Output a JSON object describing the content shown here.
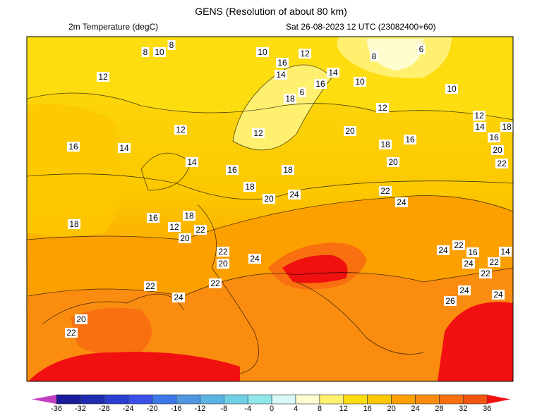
{
  "header": {
    "title": "GENS (Resolution of about 80 km)",
    "variable": "2m Temperature (degC)",
    "valid_time": "Sat 26-08-2023 12 UTC (23082400+60)"
  },
  "colorbar": {
    "labels": [
      "-36",
      "-32",
      "-28",
      "-24",
      "-20",
      "-16",
      "-12",
      "-8",
      "-4",
      "0",
      "4",
      "8",
      "12",
      "16",
      "20",
      "24",
      "28",
      "32",
      "36"
    ],
    "colors": [
      "#1a1a9a",
      "#1f2cb0",
      "#2a3ed0",
      "#3a50e8",
      "#3d78e8",
      "#4f95e0",
      "#5ab4e4",
      "#6fd0e8",
      "#90e8ea",
      "#d8f8f8",
      "#fffcd0",
      "#fff070",
      "#fddc10",
      "#fcc800",
      "#fca000",
      "#fa8c10",
      "#f87010",
      "#f05810"
    ],
    "under_color": "#c040c0",
    "over_color": "#f01010"
  },
  "contour_labels": [
    "8",
    "10",
    "8",
    "10",
    "12",
    "8",
    "6",
    "16",
    "14",
    "14",
    "16",
    "10",
    "12",
    "10",
    "18",
    "6",
    "12",
    "12",
    "14",
    "16",
    "18",
    "12",
    "12",
    "20",
    "16",
    "14",
    "18",
    "16",
    "20",
    "14",
    "16",
    "18",
    "20",
    "22",
    "18",
    "20",
    "24",
    "22",
    "24",
    "16",
    "18",
    "18",
    "12",
    "20",
    "22",
    "24",
    "22",
    "14",
    "22",
    "20",
    "24",
    "16",
    "24",
    "22",
    "22",
    "22",
    "22",
    "24",
    "24",
    "26",
    "24",
    "20",
    "22"
  ]
}
